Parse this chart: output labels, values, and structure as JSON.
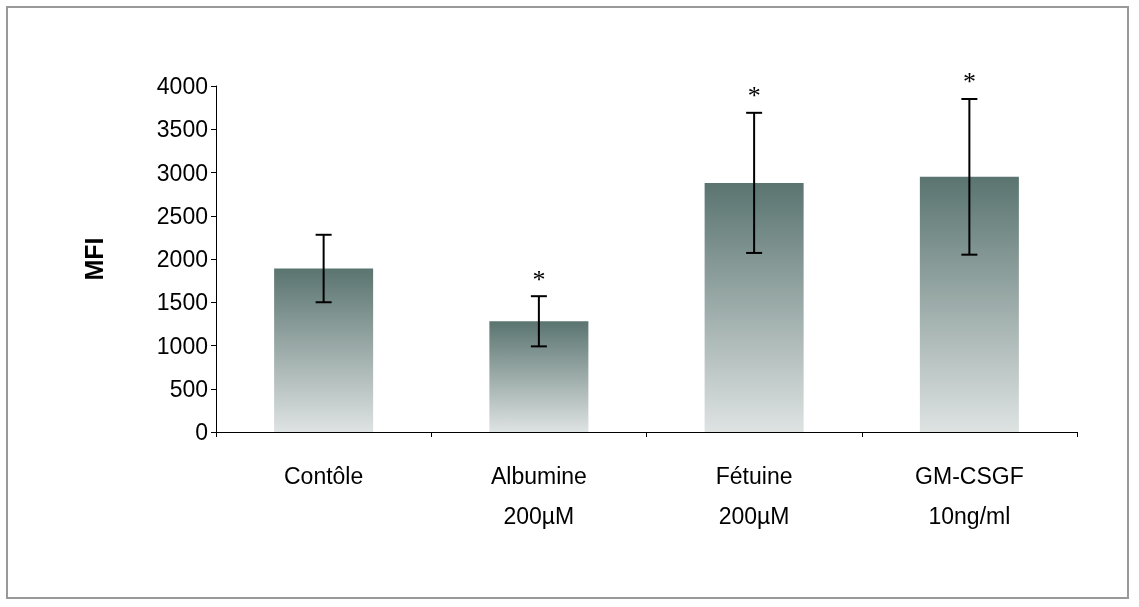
{
  "chart_data": {
    "type": "bar",
    "ylabel": "MFI",
    "categories": [
      "Contôle",
      "Albumine 200µM",
      "Fétuine 200µM",
      "GM-CSGF 10ng/ml"
    ],
    "values": [
      1890,
      1280,
      2880,
      2950
    ],
    "errors": [
      390,
      290,
      810,
      900
    ],
    "color": "#5a7470",
    "ylim": [
      0,
      4000
    ],
    "yticks": [
      0,
      500,
      1000,
      1500,
      2000,
      2500,
      3000,
      3500,
      4000
    ],
    "grid": false,
    "annotations": [
      {
        "text": "*",
        "x": "Albumine 200µM",
        "y": 1570
      },
      {
        "text": "*",
        "x": "Fétuine 200µM",
        "y": 3690
      },
      {
        "text": "*",
        "x": "GM-CSGF 10ng/ml",
        "y": 3850
      }
    ]
  }
}
